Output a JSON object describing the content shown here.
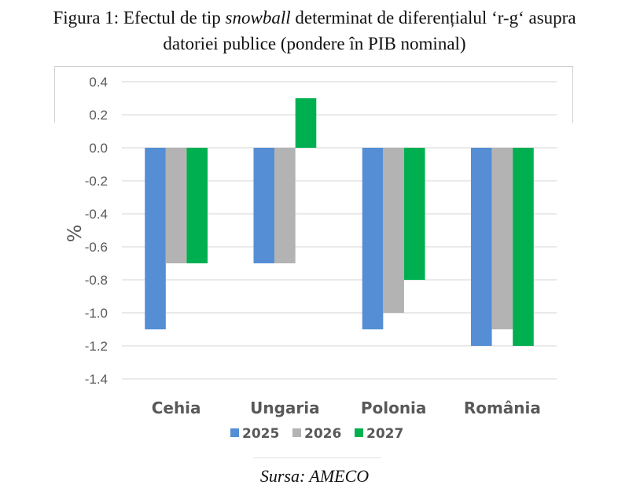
{
  "title": {
    "part1": "Figura 1: Efectul de tip ",
    "italic": "snowball",
    "part2": " determinat de diferențialul ‘r-g‘ asupra",
    "line2": "datoriei publice (pondere în PIB nominal)"
  },
  "source": "Sursa: AMECO",
  "chart_data": {
    "type": "bar",
    "title": "Figura 1: Efectul de tip snowball determinat de diferențialul ‘r-g‘ asupra datoriei publice (pondere în PIB nominal)",
    "xlabel": "",
    "ylabel": "%",
    "categories": [
      "Cehia",
      "Ungaria",
      "Polonia",
      "România"
    ],
    "series": [
      {
        "name": "2025",
        "color": "#558ED5",
        "values": [
          -1.1,
          -0.7,
          -1.1,
          -1.2
        ]
      },
      {
        "name": "2026",
        "color": "#B3B3B3",
        "values": [
          -0.7,
          -0.7,
          -1.0,
          -1.1
        ]
      },
      {
        "name": "2027",
        "color": "#00B050",
        "values": [
          -0.7,
          0.3,
          -0.8,
          -1.2
        ]
      }
    ],
    "ylim": [
      -1.4,
      0.4
    ],
    "yticks": [
      "0.4",
      "0.2",
      "0.0",
      "-0.2",
      "-0.4",
      "-0.6",
      "-0.8",
      "-1.0",
      "-1.2",
      "-1.4"
    ],
    "ytick_values": [
      0.4,
      0.2,
      0.0,
      -0.2,
      -0.4,
      -0.6,
      -0.8,
      -1.0,
      -1.2,
      -1.4
    ],
    "grid": true,
    "legend": "bottom-center"
  }
}
